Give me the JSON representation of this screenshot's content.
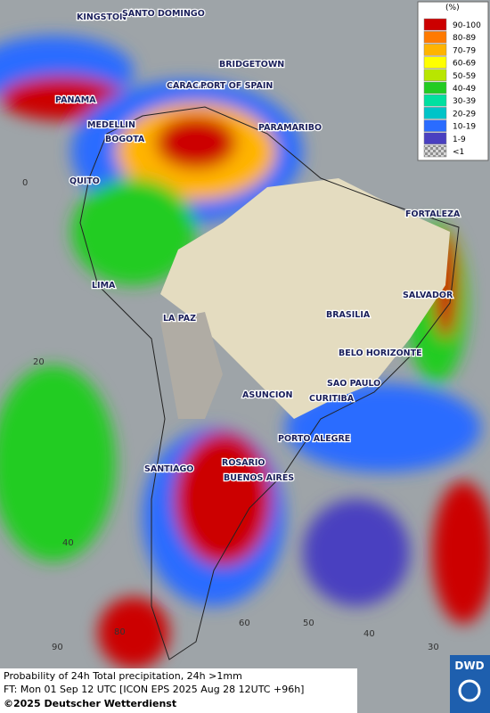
{
  "legend": {
    "title": "(%)",
    "entries": [
      {
        "label": "90-100",
        "color": "#cc0000"
      },
      {
        "label": "80-89",
        "color": "#ff7a00"
      },
      {
        "label": "70-79",
        "color": "#ffb400"
      },
      {
        "label": "60-69",
        "color": "#ffff00"
      },
      {
        "label": "50-59",
        "color": "#b8e600"
      },
      {
        "label": "40-49",
        "color": "#22cc22"
      },
      {
        "label": "30-39",
        "color": "#00e0a0"
      },
      {
        "label": "20-29",
        "color": "#00c4c8"
      },
      {
        "label": "10-19",
        "color": "#2a6cff"
      },
      {
        "label": "1-9",
        "color": "#4a40c0"
      },
      {
        "label": "<1",
        "color": "checker"
      }
    ]
  },
  "cities": [
    "KINGSTON",
    "SANTO DOMINGO",
    "BRIDGETOWN",
    "CARACAS",
    "PORT OF SPAIN",
    "PANAMA",
    "MEDELLIN",
    "BOGOTA",
    "PARAMARIBO",
    "QUITO",
    "FORTALEZA",
    "LIMA",
    "SALVADOR",
    "LA PAZ",
    "BRASILIA",
    "BELO HORIZONTE",
    "SAO PAULO",
    "ASUNCION",
    "CURITIBA",
    "PORTO ALEGRE",
    "ROSARIO",
    "SANTIAGO",
    "BUENOS AIRES"
  ],
  "grid_labels": [
    "0",
    "20",
    "40",
    "90",
    "80",
    "60",
    "50",
    "40",
    "30"
  ],
  "footer": {
    "line1": "Probability of 24h Total precipitation, 24h >1mm",
    "line2": "FT: Mon 01 Sep 12 UTC [ICON EPS 2025 Aug 28 12UTC +96h]",
    "copyright": "©2025 Deutscher Wetterdienst"
  },
  "logo": "DWD"
}
